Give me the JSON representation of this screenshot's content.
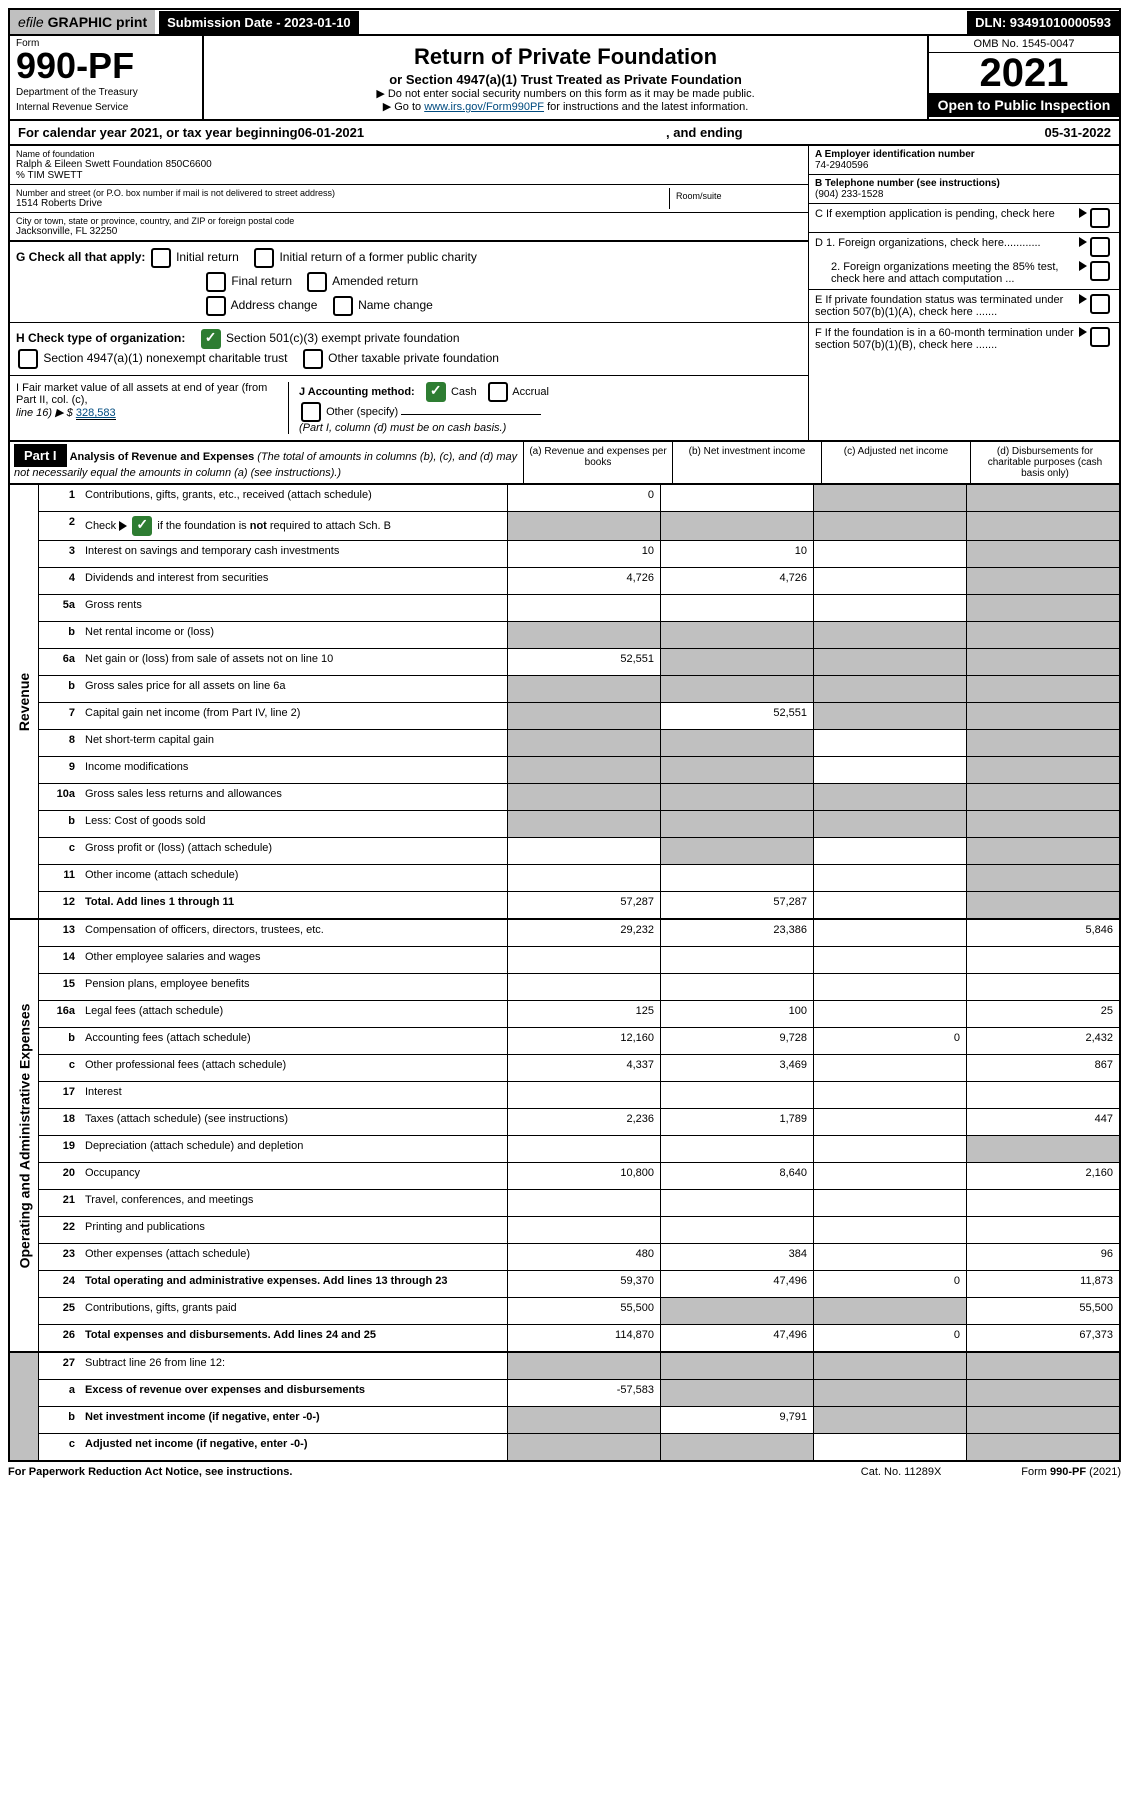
{
  "topbar": {
    "efile_prefix": "efile",
    "efile_suffix": "GRAPHIC print",
    "sub_date_label": "Submission Date - 2023-01-10",
    "dln": "DLN: 93491010000593"
  },
  "header": {
    "form_label": "Form",
    "form_number": "990-PF",
    "dept1": "Department of the Treasury",
    "dept2": "Internal Revenue Service",
    "title": "Return of Private Foundation",
    "subtitle": "or Section 4947(a)(1) Trust Treated as Private Foundation",
    "arrow1": "▶ Do not enter social security numbers on this form as it may be made public.",
    "arrow2_pre": "▶ Go to ",
    "arrow2_link": "www.irs.gov/Form990PF",
    "arrow2_post": " for instructions and the latest information.",
    "omb": "OMB No. 1545-0047",
    "year": "2021",
    "open": "Open to Public Inspection"
  },
  "calyear": {
    "pre": "For calendar year 2021, or tax year beginning ",
    "begin": "06-01-2021",
    "mid": ", and ending ",
    "end": "05-31-2022"
  },
  "name_block": {
    "name_label": "Name of foundation",
    "name": "Ralph & Eileen Swett Foundation 850C6600",
    "care_of": "% TIM SWETT",
    "addr_label": "Number and street (or P.O. box number if mail is not delivered to street address)",
    "addr": "1514 Roberts Drive",
    "room_label": "Room/suite",
    "city_label": "City or town, state or province, country, and ZIP or foreign postal code",
    "city": "Jacksonville, FL  32250"
  },
  "right_block": {
    "A_label": "A Employer identification number",
    "A_val": "74-2940596",
    "B_label": "B Telephone number (see instructions)",
    "B_val": "(904) 233-1528",
    "C_label": "C If exemption application is pending, check here",
    "D1": "D 1. Foreign organizations, check here............",
    "D2": "2. Foreign organizations meeting the 85% test, check here and attach computation ...",
    "E": "E  If private foundation status was terminated under section 507(b)(1)(A), check here .......",
    "F": "F  If the foundation is in a 60-month termination under section 507(b)(1)(B), check here .......",
    "J_label": "J Accounting method:",
    "J_cash": "Cash",
    "J_acc": "Accrual",
    "J_other": "Other (specify)",
    "J_note": "(Part I, column (d) must be on cash basis.)"
  },
  "G": {
    "label": "G Check all that apply:",
    "opts": [
      "Initial return",
      "Initial return of a former public charity",
      "Final return",
      "Amended return",
      "Address change",
      "Name change"
    ]
  },
  "H": {
    "label": "H Check type of organization:",
    "opt1": "Section 501(c)(3) exempt private foundation",
    "opt2": "Section 4947(a)(1) nonexempt charitable trust",
    "opt3": "Other taxable private foundation"
  },
  "I": {
    "label": "I Fair market value of all assets at end of year (from Part II, col. (c),",
    "line": "line 16) ▶ $",
    "val": "328,583"
  },
  "part1": {
    "label": "Part I",
    "title": "Analysis of Revenue and Expenses",
    "title_paren": "(The total of amounts in columns (b), (c), and (d) may not necessarily equal the amounts in column (a) (see instructions).)",
    "col_a": "(a)  Revenue and expenses per books",
    "col_b": "(b)  Net investment income",
    "col_c": "(c)  Adjusted net income",
    "col_d": "(d)  Disbursements for charitable purposes (cash basis only)"
  },
  "sidelabels": {
    "rev": "Revenue",
    "exp": "Operating and Administrative Expenses"
  },
  "rows": [
    {
      "n": "1",
      "d": "Contributions, gifts, grants, etc., received (attach schedule)",
      "a": "0",
      "b": "",
      "c": "g",
      "dcol": "g"
    },
    {
      "n": "2",
      "d": "Check ▶ ☑ if the foundation is not required to attach Sch. B",
      "a": "g",
      "b": "g",
      "c": "g",
      "dcol": "g",
      "special": "check"
    },
    {
      "n": "3",
      "d": "Interest on savings and temporary cash investments",
      "a": "10",
      "b": "10",
      "c": "",
      "dcol": "g"
    },
    {
      "n": "4",
      "d": "Dividends and interest from securities",
      "a": "4,726",
      "b": "4,726",
      "c": "",
      "dcol": "g"
    },
    {
      "n": "5a",
      "d": "Gross rents",
      "a": "",
      "b": "",
      "c": "",
      "dcol": "g"
    },
    {
      "n": "b",
      "d": "Net rental income or (loss)",
      "a": "g",
      "b": "g",
      "c": "g",
      "dcol": "g",
      "inset": true
    },
    {
      "n": "6a",
      "d": "Net gain or (loss) from sale of assets not on line 10",
      "a": "52,551",
      "b": "g",
      "c": "g",
      "dcol": "g"
    },
    {
      "n": "b",
      "d": "Gross sales price for all assets on line 6a",
      "a": "g",
      "b": "g",
      "c": "g",
      "dcol": "g",
      "inset": true
    },
    {
      "n": "7",
      "d": "Capital gain net income (from Part IV, line 2)",
      "a": "g",
      "b": "52,551",
      "c": "g",
      "dcol": "g"
    },
    {
      "n": "8",
      "d": "Net short-term capital gain",
      "a": "g",
      "b": "g",
      "c": "",
      "dcol": "g"
    },
    {
      "n": "9",
      "d": "Income modifications",
      "a": "g",
      "b": "g",
      "c": "",
      "dcol": "g"
    },
    {
      "n": "10a",
      "d": "Gross sales less returns and allowances",
      "a": "g",
      "b": "g",
      "c": "g",
      "dcol": "g",
      "inset": true
    },
    {
      "n": "b",
      "d": "Less: Cost of goods sold",
      "a": "g",
      "b": "g",
      "c": "g",
      "dcol": "g",
      "inset": true
    },
    {
      "n": "c",
      "d": "Gross profit or (loss) (attach schedule)",
      "a": "",
      "b": "g",
      "c": "",
      "dcol": "g"
    },
    {
      "n": "11",
      "d": "Other income (attach schedule)",
      "a": "",
      "b": "",
      "c": "",
      "dcol": "g"
    },
    {
      "n": "12",
      "d": "Total. Add lines 1 through 11",
      "a": "57,287",
      "b": "57,287",
      "c": "",
      "dcol": "g",
      "bold": true
    }
  ],
  "exp_rows": [
    {
      "n": "13",
      "d": "Compensation of officers, directors, trustees, etc.",
      "a": "29,232",
      "b": "23,386",
      "c": "",
      "dcol": "5,846"
    },
    {
      "n": "14",
      "d": "Other employee salaries and wages",
      "a": "",
      "b": "",
      "c": "",
      "dcol": ""
    },
    {
      "n": "15",
      "d": "Pension plans, employee benefits",
      "a": "",
      "b": "",
      "c": "",
      "dcol": ""
    },
    {
      "n": "16a",
      "d": "Legal fees (attach schedule)",
      "a": "125",
      "b": "100",
      "c": "",
      "dcol": "25"
    },
    {
      "n": "b",
      "d": "Accounting fees (attach schedule)",
      "a": "12,160",
      "b": "9,728",
      "c": "0",
      "dcol": "2,432"
    },
    {
      "n": "c",
      "d": "Other professional fees (attach schedule)",
      "a": "4,337",
      "b": "3,469",
      "c": "",
      "dcol": "867"
    },
    {
      "n": "17",
      "d": "Interest",
      "a": "",
      "b": "",
      "c": "",
      "dcol": ""
    },
    {
      "n": "18",
      "d": "Taxes (attach schedule) (see instructions)",
      "a": "2,236",
      "b": "1,789",
      "c": "",
      "dcol": "447"
    },
    {
      "n": "19",
      "d": "Depreciation (attach schedule) and depletion",
      "a": "",
      "b": "",
      "c": "",
      "dcol": "g"
    },
    {
      "n": "20",
      "d": "Occupancy",
      "a": "10,800",
      "b": "8,640",
      "c": "",
      "dcol": "2,160"
    },
    {
      "n": "21",
      "d": "Travel, conferences, and meetings",
      "a": "",
      "b": "",
      "c": "",
      "dcol": ""
    },
    {
      "n": "22",
      "d": "Printing and publications",
      "a": "",
      "b": "",
      "c": "",
      "dcol": ""
    },
    {
      "n": "23",
      "d": "Other expenses (attach schedule)",
      "a": "480",
      "b": "384",
      "c": "",
      "dcol": "96"
    },
    {
      "n": "24",
      "d": "Total operating and administrative expenses. Add lines 13 through 23",
      "a": "59,370",
      "b": "47,496",
      "c": "0",
      "dcol": "11,873",
      "bold": true
    },
    {
      "n": "25",
      "d": "Contributions, gifts, grants paid",
      "a": "55,500",
      "b": "g",
      "c": "g",
      "dcol": "55,500"
    },
    {
      "n": "26",
      "d": "Total expenses and disbursements. Add lines 24 and 25",
      "a": "114,870",
      "b": "47,496",
      "c": "0",
      "dcol": "67,373",
      "bold": true
    }
  ],
  "net_rows": [
    {
      "n": "27",
      "d": "Subtract line 26 from line 12:",
      "a": "g",
      "b": "g",
      "c": "g",
      "dcol": "g"
    },
    {
      "n": "a",
      "d": "Excess of revenue over expenses and disbursements",
      "a": "-57,583",
      "b": "g",
      "c": "g",
      "dcol": "g",
      "bold": true
    },
    {
      "n": "b",
      "d": "Net investment income (if negative, enter -0-)",
      "a": "g",
      "b": "9,791",
      "c": "g",
      "dcol": "g",
      "bold": true
    },
    {
      "n": "c",
      "d": "Adjusted net income (if negative, enter -0-)",
      "a": "g",
      "b": "g",
      "c": "",
      "dcol": "g",
      "bold": true
    }
  ],
  "footer": {
    "left": "For Paperwork Reduction Act Notice, see instructions.",
    "mid": "Cat. No. 11289X",
    "right": "Form 990-PF (2021)"
  }
}
